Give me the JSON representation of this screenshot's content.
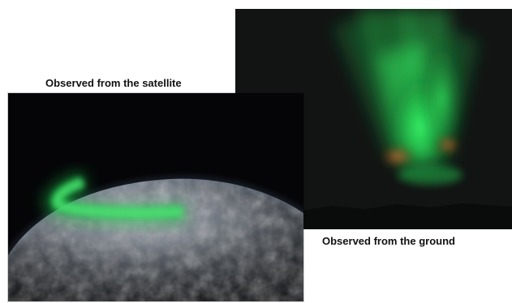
{
  "captions": {
    "satellite": "Observed from the satellite",
    "ground": "Observed from the ground"
  },
  "colors": {
    "aurora_green": "#2fd85a",
    "aurora_red": "#c8502a",
    "night_sky": "#121313",
    "space": "#050507",
    "background": "#ffffff"
  }
}
